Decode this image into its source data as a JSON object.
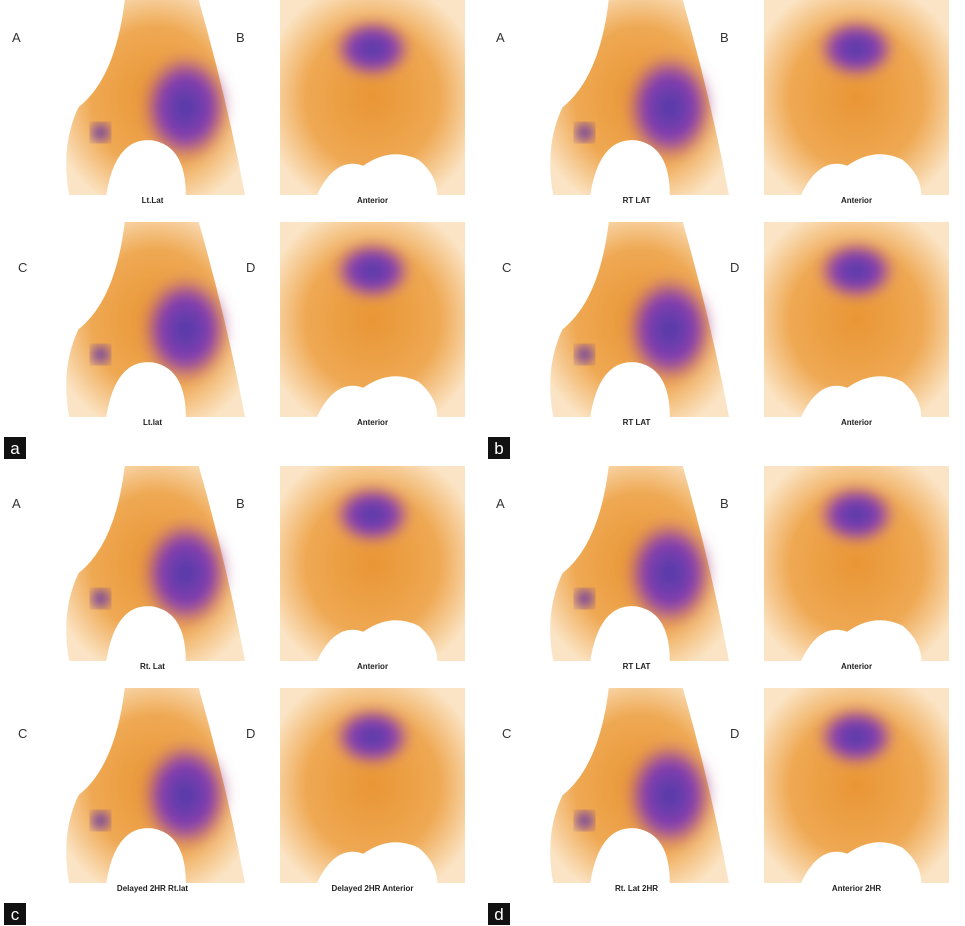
{
  "panels": [
    {
      "label": "a",
      "images": [
        {
          "letter": "A",
          "caption": "Lt.Lat"
        },
        {
          "letter": "B",
          "caption": "Anterior"
        },
        {
          "letter": "C",
          "caption": "Lt.lat"
        },
        {
          "letter": "D",
          "caption": "Anterior"
        }
      ]
    },
    {
      "label": "b",
      "images": [
        {
          "letter": "A",
          "caption": "RT LAT"
        },
        {
          "letter": "B",
          "caption": "Anterior"
        },
        {
          "letter": "C",
          "caption": "RT LAT"
        },
        {
          "letter": "D",
          "caption": "Anterior"
        }
      ]
    },
    {
      "label": "c",
      "images": [
        {
          "letter": "A",
          "caption": "Rt. Lat"
        },
        {
          "letter": "B",
          "caption": "Anterior"
        },
        {
          "letter": "C",
          "caption": "Delayed 2HR Rt.lat"
        },
        {
          "letter": "D",
          "caption": "Delayed 2HR Anterior"
        }
      ]
    },
    {
      "label": "d",
      "images": [
        {
          "letter": "A",
          "caption": "RT LAT"
        },
        {
          "letter": "B",
          "caption": "Anterior"
        },
        {
          "letter": "C",
          "caption": "Rt. Lat 2HR"
        },
        {
          "letter": "D",
          "caption": "Anterior 2HR"
        }
      ]
    }
  ]
}
